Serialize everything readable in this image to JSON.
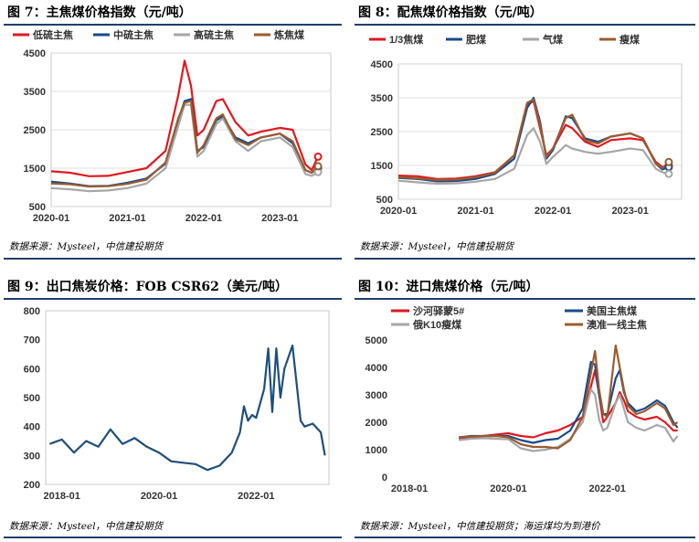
{
  "panels": [
    {
      "title": "图 7：主焦煤价格指数（元/吨）",
      "source": "数据来源：Mysteel，中信建投期货",
      "chart_data": {
        "type": "line",
        "title": "图 7：主焦煤价格指数（元/吨）",
        "xlabel": "",
        "ylabel": "",
        "x": [
          "2020-01",
          "2020-04",
          "2020-07",
          "2020-10",
          "2021-01",
          "2021-04",
          "2021-07",
          "2021-09",
          "2021-10",
          "2021-11",
          "2021-12",
          "2022-01",
          "2022-03",
          "2022-04",
          "2022-06",
          "2022-08",
          "2022-10",
          "2023-01",
          "2023-03",
          "2023-05",
          "2023-06",
          "2023-07"
        ],
        "ylim": [
          500,
          4500
        ],
        "yticks": [
          500,
          1500,
          2500,
          3500,
          4500
        ],
        "xticks": [
          "2020-01",
          "2021-01",
          "2022-01",
          "2023-01"
        ],
        "grid": true,
        "legend": "top",
        "series": [
          {
            "name": "低硫主焦",
            "color": "#e0191f",
            "values": [
              1420,
              1380,
              1290,
              1300,
              1400,
              1500,
              1950,
              3400,
              4300,
              3650,
              2350,
              2500,
              3250,
              3300,
              2700,
              2350,
              2450,
              2550,
              2500,
              1600,
              1450,
              1800
            ]
          },
          {
            "name": "中硫主焦",
            "color": "#174a8b",
            "values": [
              1150,
              1100,
              1030,
              1040,
              1120,
              1230,
              1620,
              2750,
              3250,
              3300,
              1950,
              2050,
              2750,
              2850,
              2300,
              2150,
              2300,
              2400,
              2150,
              1450,
              1380,
              1500
            ]
          },
          {
            "name": "高硫主焦",
            "color": "#a6a6a6",
            "values": [
              980,
              950,
              900,
              920,
              980,
              1100,
              1500,
              2600,
              3150,
              3150,
              1800,
              1950,
              2650,
              2800,
              2200,
              1950,
              2200,
              2300,
              2050,
              1350,
              1300,
              1400
            ]
          },
          {
            "name": "炼焦煤",
            "color": "#9a5c2e",
            "values": [
              1100,
              1080,
              1020,
              1030,
              1090,
              1200,
              1650,
              2800,
              3200,
              3250,
              1900,
              2100,
              2800,
              2900,
              2250,
              2100,
              2300,
              2400,
              2200,
              1450,
              1380,
              1550
            ]
          }
        ]
      }
    },
    {
      "title": "图 8：配焦煤价格指数（元/吨）",
      "source": "数据来源：Mysteel，中信建投期货",
      "chart_data": {
        "type": "line",
        "title": "图 8：配焦煤价格指数（元/吨）",
        "xlabel": "",
        "ylabel": "",
        "x": [
          "2020-01",
          "2020-04",
          "2020-07",
          "2020-10",
          "2021-01",
          "2021-04",
          "2021-07",
          "2021-09",
          "2021-10",
          "2021-11",
          "2021-12",
          "2022-01",
          "2022-03",
          "2022-04",
          "2022-06",
          "2022-08",
          "2022-10",
          "2023-01",
          "2023-03",
          "2023-05",
          "2023-06",
          "2023-07"
        ],
        "ylim": [
          500,
          4500
        ],
        "yticks": [
          500,
          1500,
          2500,
          3500,
          4500
        ],
        "xticks": [
          "2020-01",
          "2021-01",
          "2022-01",
          "2023-01"
        ],
        "grid": true,
        "legend": "top",
        "series": [
          {
            "name": "1/3焦煤",
            "color": "#e0191f",
            "values": [
              1200,
              1180,
              1100,
              1110,
              1180,
              1300,
              1800,
              3300,
              3400,
              2600,
              1800,
              2000,
              2700,
              2600,
              2200,
              2050,
              2250,
              2300,
              2250,
              1600,
              1450,
              1500
            ]
          },
          {
            "name": "肥煤",
            "color": "#174a8b",
            "values": [
              1130,
              1100,
              1030,
              1040,
              1100,
              1250,
              1700,
              3200,
              3500,
              2800,
              1700,
              1950,
              2950,
              2900,
              2300,
              2200,
              2350,
              2450,
              2300,
              1550,
              1380,
              1450
            ]
          },
          {
            "name": "气煤",
            "color": "#a6a6a6",
            "values": [
              1050,
              1000,
              960,
              970,
              1020,
              1100,
              1400,
              2400,
              2600,
              2200,
              1550,
              1750,
              2100,
              2000,
              1900,
              1850,
              1900,
              2000,
              1950,
              1400,
              1300,
              1250
            ]
          },
          {
            "name": "瘦煤",
            "color": "#9a5c2e",
            "values": [
              1150,
              1120,
              1070,
              1080,
              1150,
              1280,
              1800,
              3350,
              3450,
              2700,
              1750,
              2000,
              2900,
              3000,
              2250,
              2150,
              2350,
              2450,
              2300,
              1550,
              1420,
              1600
            ]
          }
        ]
      }
    },
    {
      "title": "图 9：出口焦炭价格：FOB CSR62（美元/吨）",
      "source": "数据来源：Mysteel，中信建投期货",
      "chart_data": {
        "type": "line",
        "title": "图 9：出口焦炭价格：FOB CSR62（美元/吨）",
        "xlabel": "",
        "ylabel": "",
        "x": [
          "2017-10",
          "2018-01",
          "2018-04",
          "2018-07",
          "2018-10",
          "2019-01",
          "2019-04",
          "2019-07",
          "2019-10",
          "2020-01",
          "2020-04",
          "2020-07",
          "2020-10",
          "2021-01",
          "2021-04",
          "2021-07",
          "2021-09",
          "2021-10",
          "2021-11",
          "2021-12",
          "2022-01",
          "2022-03",
          "2022-04",
          "2022-05",
          "2022-06",
          "2022-07",
          "2022-08",
          "2022-10",
          "2022-12",
          "2023-01",
          "2023-03",
          "2023-05",
          "2023-06"
        ],
        "ylim": [
          200,
          800
        ],
        "yticks": [
          200,
          300,
          400,
          500,
          600,
          700,
          800
        ],
        "xticks": [
          "2018-01",
          "2020-01",
          "2022-01"
        ],
        "grid": false,
        "series": [
          {
            "name": "FOB CSR62",
            "color": "#1f4e79",
            "values": [
              340,
              355,
              310,
              350,
              330,
              390,
              340,
              360,
              330,
              310,
              280,
              275,
              270,
              250,
              265,
              310,
              380,
              470,
              420,
              440,
              430,
              530,
              670,
              450,
              670,
              500,
              600,
              680,
              420,
              400,
              410,
              380,
              300
            ]
          }
        ]
      }
    },
    {
      "title": "图 10：进口焦煤价格（元/吨）",
      "source": "数据来源：Mysteel，中信建投期货；海运煤均为到港价",
      "chart_data": {
        "type": "line",
        "title": "图 10：进口焦煤价格（元/吨）",
        "xlabel": "",
        "ylabel": "",
        "x": [
          "2019-01",
          "2019-04",
          "2019-07",
          "2019-10",
          "2020-01",
          "2020-04",
          "2020-07",
          "2020-10",
          "2021-01",
          "2021-04",
          "2021-07",
          "2021-09",
          "2021-10",
          "2021-11",
          "2021-12",
          "2022-01",
          "2022-03",
          "2022-04",
          "2022-05",
          "2022-06",
          "2022-08",
          "2022-10",
          "2023-01",
          "2023-03",
          "2023-05",
          "2023-06"
        ],
        "ylim": [
          0,
          5000
        ],
        "yticks": [
          0,
          1000,
          2000,
          3000,
          4000,
          5000
        ],
        "xticks": [
          "2018-01",
          "2020-01",
          "2022-01"
        ],
        "grid": false,
        "legend": "top",
        "series": [
          {
            "name": "沙河驿蒙5#",
            "color": "#e0191f",
            "values": [
              1400,
              1450,
              1500,
              1550,
              1600,
              1500,
              1450,
              1600,
              1700,
              1900,
              2200,
              3300,
              3900,
              3000,
              2000,
              2200,
              2700,
              3100,
              2800,
              2400,
              2200,
              2100,
              2200,
              2000,
              1700,
              1700
            ]
          },
          {
            "name": "美国主焦煤",
            "color": "#174a8b",
            "values": [
              1450,
              1500,
              1500,
              1500,
              1500,
              1350,
              1250,
              1350,
              1400,
              1700,
              2500,
              4200,
              4100,
              3000,
              2300,
              2300,
              3600,
              3900,
              3100,
              2700,
              2400,
              2500,
              2800,
              2600,
              2000,
              1800
            ]
          },
          {
            "name": "俄K10瘦煤",
            "color": "#a6a6a6",
            "values": [
              1350,
              1400,
              1420,
              1400,
              1380,
              1050,
              950,
              1000,
              1100,
              1400,
              2000,
              3200,
              3000,
              2100,
              1700,
              1800,
              2700,
              3000,
              2500,
              2000,
              1800,
              1700,
              1900,
              1800,
              1300,
              1500
            ]
          },
          {
            "name": "澳准一线主焦",
            "color": "#9a5c2e",
            "values": [
              1450,
              1480,
              1500,
              1500,
              1450,
              1200,
              1100,
              1100,
              1050,
              1350,
              2200,
              3800,
              4600,
              3200,
              2300,
              2200,
              4800,
              4000,
              3200,
              2600,
              2300,
              2400,
              2700,
              2500,
              1900,
              2000
            ]
          }
        ]
      }
    }
  ]
}
